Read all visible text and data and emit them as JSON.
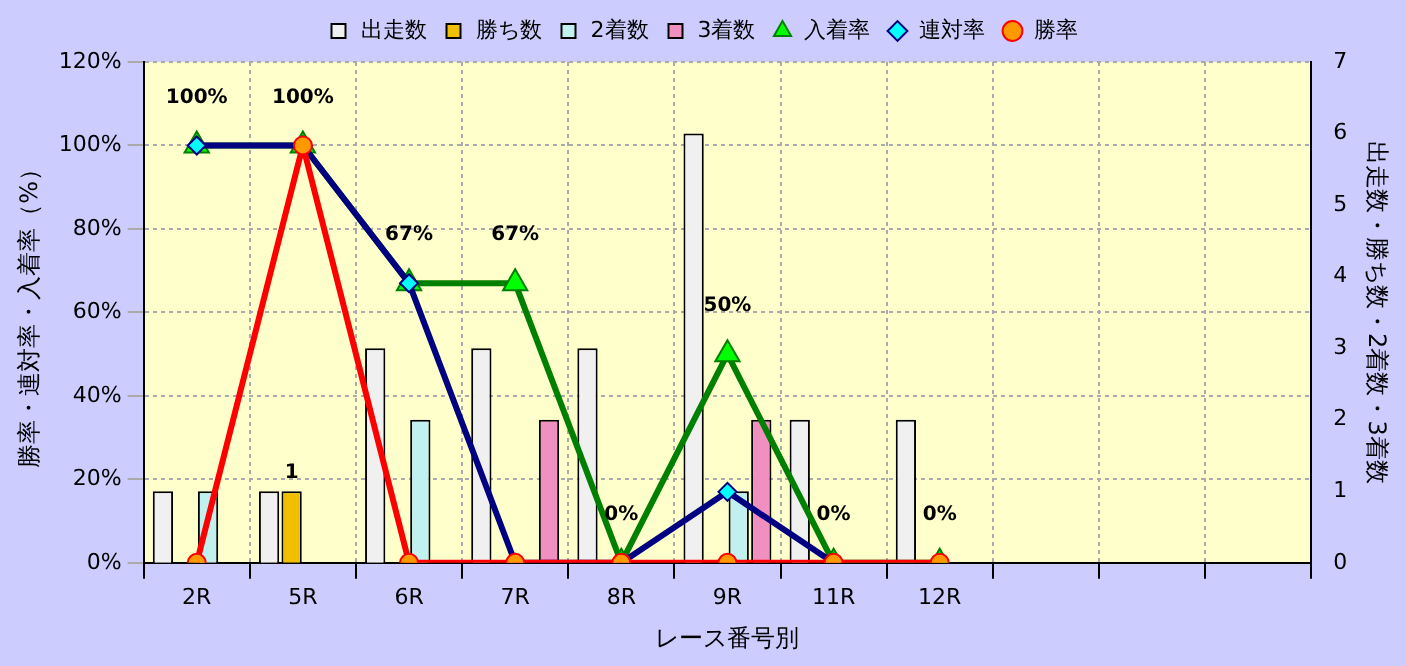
{
  "chart_data": {
    "type": "bar",
    "xlabel": "レース番号別",
    "ylabel": "勝率・連対率・入着率（%）",
    "y2label": "出走数・勝ち数・2着数・3着数",
    "categories": [
      "2R",
      "5R",
      "6R",
      "7R",
      "8R",
      "9R",
      "11R",
      "12R",
      null,
      null,
      null
    ],
    "series": [
      {
        "name": "出走数",
        "axis": "y2",
        "color": "#f0f0f0",
        "values": [
          1,
          1,
          3,
          3,
          3,
          6,
          2,
          2,
          null,
          null,
          null
        ]
      },
      {
        "name": "勝ち数",
        "axis": "y2",
        "color": "#f0c000",
        "values": [
          0,
          1,
          0,
          0,
          0,
          0,
          0,
          0,
          null,
          null,
          null
        ],
        "value_labels": [
          null,
          "1",
          null,
          null,
          null,
          null,
          null,
          null,
          null,
          null,
          null
        ]
      },
      {
        "name": "2着数",
        "axis": "y2",
        "color": "#c0f0f0",
        "values": [
          1,
          0,
          2,
          0,
          0,
          1,
          0,
          0,
          null,
          null,
          null
        ]
      },
      {
        "name": "3着数",
        "axis": "y2",
        "color": "#f090c0",
        "values": [
          0,
          0,
          0,
          2,
          0,
          2,
          0,
          0,
          null,
          null,
          null
        ]
      },
      {
        "name": "入着率",
        "type": "line",
        "marker": "triangle",
        "color": "#008000",
        "values": [
          100,
          100,
          67,
          67,
          0,
          50,
          0,
          0,
          null,
          null,
          null
        ],
        "value_labels": [
          "100%",
          "100%",
          "67%",
          "67%",
          "0%",
          "50%",
          "0%",
          "0%",
          null,
          null,
          null
        ]
      },
      {
        "name": "連対率",
        "type": "line",
        "marker": "diamond",
        "color": "#000080",
        "values": [
          100,
          100,
          67,
          0,
          0,
          17,
          0,
          null,
          null,
          null,
          null
        ]
      },
      {
        "name": "勝率",
        "type": "line",
        "marker": "circle",
        "color": "#ff0000",
        "values": [
          0,
          100,
          0,
          0,
          0,
          0,
          0,
          0,
          null,
          null,
          null
        ]
      }
    ],
    "ylim": [
      0,
      120
    ],
    "yticks": [
      {
        "value": 0,
        "label": "0%"
      },
      {
        "value": 20,
        "label": "20%"
      },
      {
        "value": 40,
        "label": "40%"
      },
      {
        "value": 60,
        "label": "60%"
      },
      {
        "value": 80,
        "label": "80%"
      },
      {
        "value": 100,
        "label": "100%"
      },
      {
        "value": 120,
        "label": "120%"
      }
    ],
    "y2lim": [
      0,
      7
    ],
    "y2ticks": [
      0,
      1,
      2,
      3,
      4,
      5,
      6,
      7
    ],
    "grid": true,
    "legend": "top"
  }
}
